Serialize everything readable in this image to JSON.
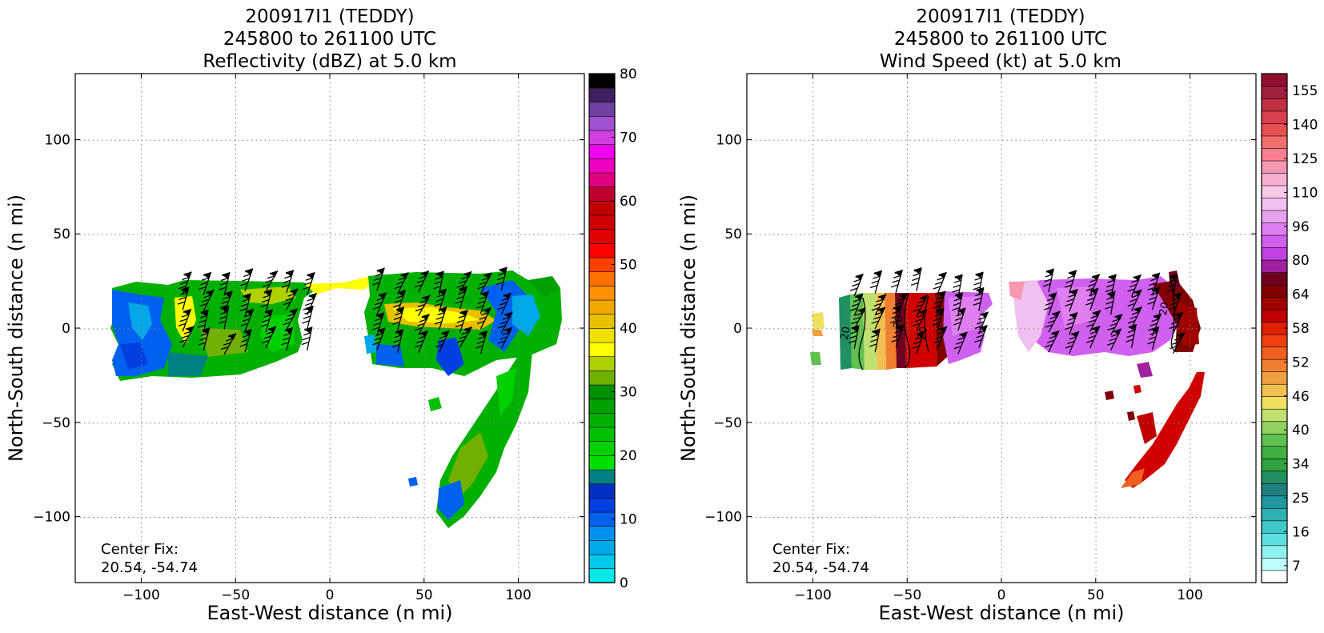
{
  "chart_data": [
    {
      "type": "heatmap",
      "id": "left",
      "title_lines": [
        "200917I1 (TEDDY)",
        "245800 to 261100 UTC",
        "Reflectivity (dBZ) at 5.0 km"
      ],
      "xlabel": "East-West distance (n mi)",
      "ylabel": "North-South distance (n mi)",
      "xlim": [
        -135,
        135
      ],
      "ylim": [
        -135,
        135
      ],
      "xticks": [
        -100,
        -50,
        0,
        50,
        100
      ],
      "yticks": [
        -100,
        -50,
        0,
        50,
        100
      ],
      "grid": true,
      "center_fix_label": "Center Fix:",
      "center_fix_value": "20.54, -54.74",
      "colorbar": {
        "tick_labels": [
          "0",
          "10",
          "20",
          "30",
          "40",
          "50",
          "60",
          "70",
          "80"
        ],
        "colors": [
          "#00e8e8",
          "#00c8e8",
          "#00a8e8",
          "#0090f0",
          "#0060f0",
          "#0040e0",
          "#0030c0",
          "#008080",
          "#00e000",
          "#00d000",
          "#00c000",
          "#00b000",
          "#00a000",
          "#009000",
          "#70b000",
          "#b0d000",
          "#ffff00",
          "#f0e000",
          "#e8c000",
          "#f0a800",
          "#ff9000",
          "#ff7000",
          "#ff4000",
          "#ff0000",
          "#e00000",
          "#d00000",
          "#c00000",
          "#c00030",
          "#e00080",
          "#f000c0",
          "#f000f0",
          "#d040e0",
          "#a050d0",
          "#7040a0",
          "#402060",
          "#000000"
        ]
      },
      "annotations": []
    },
    {
      "type": "heatmap",
      "id": "right",
      "title_lines": [
        "200917I1 (TEDDY)",
        "245800 to 261100 UTC",
        "Wind Speed (kt) at 5.0 km"
      ],
      "xlabel": "East-West distance (n mi)",
      "ylabel": "North-South distance (n mi)",
      "xlim": [
        -135,
        135
      ],
      "ylim": [
        -135,
        135
      ],
      "xticks": [
        -100,
        -50,
        0,
        50,
        100
      ],
      "yticks": [
        -100,
        -50,
        0,
        50,
        100
      ],
      "grid": true,
      "center_fix_label": "Center Fix:",
      "center_fix_value": "20.54, -54.74",
      "colorbar": {
        "tick_labels": [
          "7",
          "16",
          "25",
          "34",
          "40",
          "46",
          "52",
          "58",
          "64",
          "80",
          "96",
          "110",
          "125",
          "140",
          "155"
        ],
        "colors": [
          "#ffffff",
          "#c0ffff",
          "#90f0f0",
          "#60e0e0",
          "#40c8c8",
          "#30b0b0",
          "#2098a0",
          "#208080",
          "#209060",
          "#30a040",
          "#40b040",
          "#60c050",
          "#90d060",
          "#c0e070",
          "#f0e060",
          "#f0c050",
          "#f0a040",
          "#f08030",
          "#f06020",
          "#f04010",
          "#e02000",
          "#c00000",
          "#a00000",
          "#800000",
          "#700020",
          "#a020a0",
          "#c040e0",
          "#d060f0",
          "#e080f0",
          "#e8a0f0",
          "#f0c0f0",
          "#f8c8e8",
          "#f8b0d0",
          "#f898b0",
          "#f88090",
          "#f07070",
          "#e85050",
          "#d84050",
          "#c03040",
          "#a02040",
          "#901030"
        ]
      },
      "annotations": [
        {
          "text": "20",
          "x": -81,
          "y": -3
        },
        {
          "text": "20",
          "x": -53,
          "y": 3
        },
        {
          "text": "20",
          "x": -40,
          "y": -3
        },
        {
          "text": "20",
          "x": 88,
          "y": 10
        }
      ]
    }
  ]
}
